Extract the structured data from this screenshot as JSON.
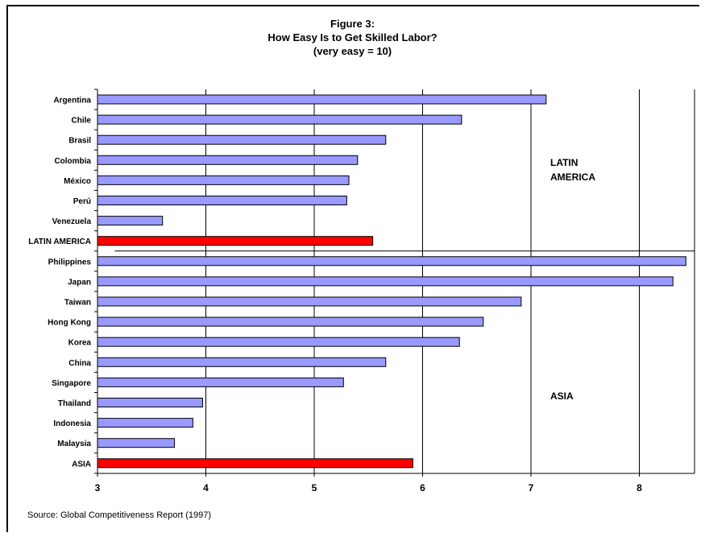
{
  "chart_data": {
    "type": "bar",
    "orientation": "horizontal",
    "title_lines": [
      "Figure 3:",
      "How Easy Is to Get Skilled Labor?",
      "(very easy = 10)"
    ],
    "categories": [
      "Argentina",
      "Chile",
      "Brasil",
      "Colombia",
      "México",
      "Perú",
      "Venezuela",
      "LATIN AMERICA",
      "Philippines",
      "Japan",
      "Taiwan",
      "Hong Kong",
      "Korea",
      "China",
      "Singapore",
      "Thailand",
      "Indonesia",
      "Malaysia",
      "ASIA"
    ],
    "values": [
      7.14,
      6.36,
      5.66,
      5.4,
      5.32,
      5.3,
      3.6,
      5.54,
      8.43,
      8.31,
      6.91,
      6.56,
      6.34,
      5.66,
      5.27,
      3.97,
      3.88,
      3.71,
      5.91
    ],
    "highlight": [
      "LATIN AMERICA",
      "ASIA"
    ],
    "xlim": [
      3,
      8.5
    ],
    "xticks": [
      3,
      4,
      5,
      6,
      7,
      8
    ],
    "grid": true,
    "group_labels": [
      {
        "lines": [
          "LATIN",
          "AMERICA"
        ]
      },
      {
        "lines": [
          "ASIA"
        ]
      }
    ],
    "source": "Source: Global Competitiveness Report (1997)"
  },
  "colors": {
    "bar": "#9999ff",
    "highlight": "#ff0000",
    "grid": "#000000"
  }
}
